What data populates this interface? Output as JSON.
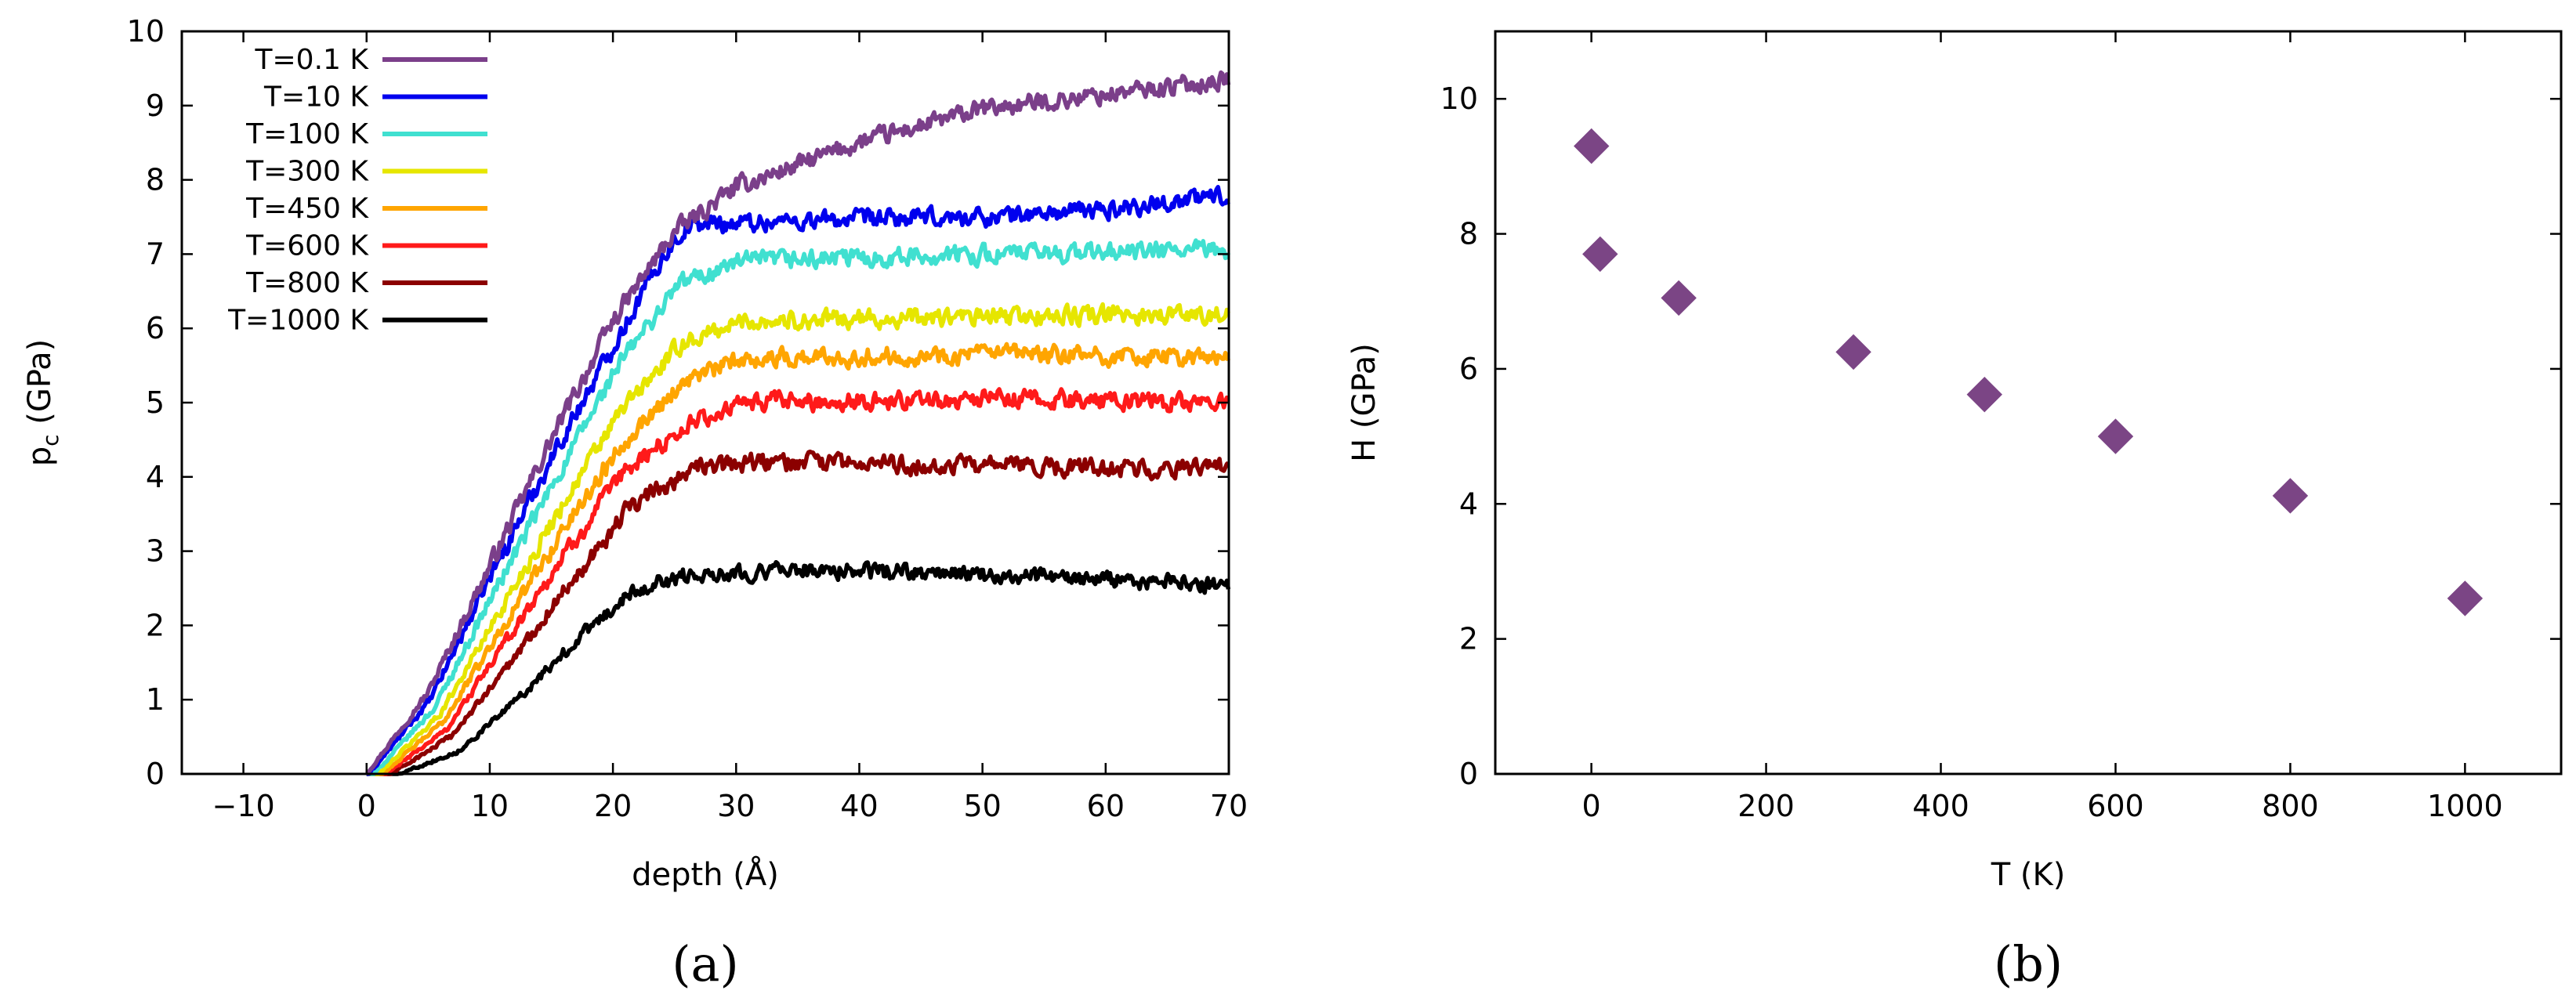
{
  "chart_data": [
    {
      "type": "line",
      "panel_label": "(a)",
      "xlabel": "depth (Å)",
      "ylabel_main": "p",
      "ylabel_sub": "c",
      "ylabel_rest": " (GPa)",
      "xlim": [
        -15,
        70
      ],
      "ylim": [
        0,
        10
      ],
      "xticks": [
        -10,
        0,
        10,
        20,
        30,
        40,
        50,
        60,
        70
      ],
      "yticks": [
        0,
        1,
        2,
        3,
        4,
        5,
        6,
        7,
        8,
        9,
        10
      ],
      "legend_position": "top-left",
      "grid": false,
      "series": [
        {
          "name": "T=0.1 K",
          "color": "#7b3f8a",
          "onset": 0.0,
          "knots": [
            [
              0,
              0
            ],
            [
              5,
              1.1
            ],
            [
              10,
              2.8
            ],
            [
              15,
              4.5
            ],
            [
              20,
              6.1
            ],
            [
              25,
              7.3
            ],
            [
              30,
              7.9
            ],
            [
              40,
              8.5
            ],
            [
              50,
              8.95
            ],
            [
              60,
              9.15
            ],
            [
              70,
              9.35
            ]
          ]
        },
        {
          "name": "T=10 K",
          "color": "#0000ee",
          "onset": 0.2,
          "knots": [
            [
              0,
              0
            ],
            [
              5,
              1.0
            ],
            [
              10,
              2.7
            ],
            [
              15,
              4.3
            ],
            [
              20,
              5.8
            ],
            [
              24,
              7.0
            ],
            [
              26,
              7.4
            ],
            [
              35,
              7.45
            ],
            [
              50,
              7.5
            ],
            [
              60,
              7.6
            ],
            [
              70,
              7.8
            ]
          ]
        },
        {
          "name": "T=100 K",
          "color": "#40e0d0",
          "onset": 0.6,
          "knots": [
            [
              0,
              0
            ],
            [
              5,
              0.9
            ],
            [
              10,
              2.5
            ],
            [
              15,
              4.0
            ],
            [
              20,
              5.5
            ],
            [
              25,
              6.6
            ],
            [
              30,
              6.9
            ],
            [
              50,
              7.0
            ],
            [
              70,
              7.05
            ]
          ]
        },
        {
          "name": "T=300 K",
          "color": "#e6e600",
          "onset": 1.0,
          "knots": [
            [
              0,
              0
            ],
            [
              5,
              0.8
            ],
            [
              10,
              2.2
            ],
            [
              15,
              3.6
            ],
            [
              20,
              4.9
            ],
            [
              25,
              5.8
            ],
            [
              30,
              6.1
            ],
            [
              50,
              6.15
            ],
            [
              70,
              6.2
            ]
          ]
        },
        {
          "name": "T=450 K",
          "color": "#ffa500",
          "onset": 1.3,
          "knots": [
            [
              0,
              0
            ],
            [
              5,
              0.7
            ],
            [
              10,
              2.0
            ],
            [
              15,
              3.3
            ],
            [
              20,
              4.5
            ],
            [
              25,
              5.3
            ],
            [
              30,
              5.6
            ],
            [
              50,
              5.65
            ],
            [
              70,
              5.6
            ]
          ]
        },
        {
          "name": "T=600 K",
          "color": "#ff1a1a",
          "onset": 1.6,
          "knots": [
            [
              0,
              0
            ],
            [
              5,
              0.6
            ],
            [
              10,
              1.8
            ],
            [
              15,
              3.0
            ],
            [
              20,
              4.1
            ],
            [
              25,
              4.7
            ],
            [
              30,
              5.0
            ],
            [
              50,
              5.05
            ],
            [
              70,
              5.0
            ]
          ]
        },
        {
          "name": "T=800 K",
          "color": "#8b0000",
          "onset": 2.0,
          "knots": [
            [
              0,
              0
            ],
            [
              5,
              0.5
            ],
            [
              10,
              1.5
            ],
            [
              15,
              2.6
            ],
            [
              20,
              3.6
            ],
            [
              25,
              4.1
            ],
            [
              30,
              4.2
            ],
            [
              50,
              4.15
            ],
            [
              70,
              4.1
            ]
          ]
        },
        {
          "name": "T=1000 K",
          "color": "#000000",
          "onset": 2.6,
          "knots": [
            [
              0,
              0
            ],
            [
              5,
              0.3
            ],
            [
              10,
              1.0
            ],
            [
              15,
              1.8
            ],
            [
              20,
              2.5
            ],
            [
              25,
              2.7
            ],
            [
              35,
              2.75
            ],
            [
              45,
              2.7
            ],
            [
              70,
              2.55
            ]
          ]
        }
      ]
    },
    {
      "type": "scatter",
      "panel_label": "(b)",
      "xlabel": "T (K)",
      "ylabel": "H (GPa)",
      "xlim": [
        -110,
        1110
      ],
      "ylim": [
        0,
        11
      ],
      "xticks": [
        0,
        200,
        400,
        600,
        800,
        1000
      ],
      "yticks": [
        0,
        2,
        4,
        6,
        8,
        10
      ],
      "marker": "diamond",
      "marker_color": "#7b4585",
      "grid": false,
      "x": [
        0.1,
        10,
        100,
        300,
        450,
        600,
        800,
        1000
      ],
      "y": [
        9.3,
        7.7,
        7.05,
        6.25,
        5.62,
        5.0,
        4.12,
        2.6
      ]
    }
  ]
}
